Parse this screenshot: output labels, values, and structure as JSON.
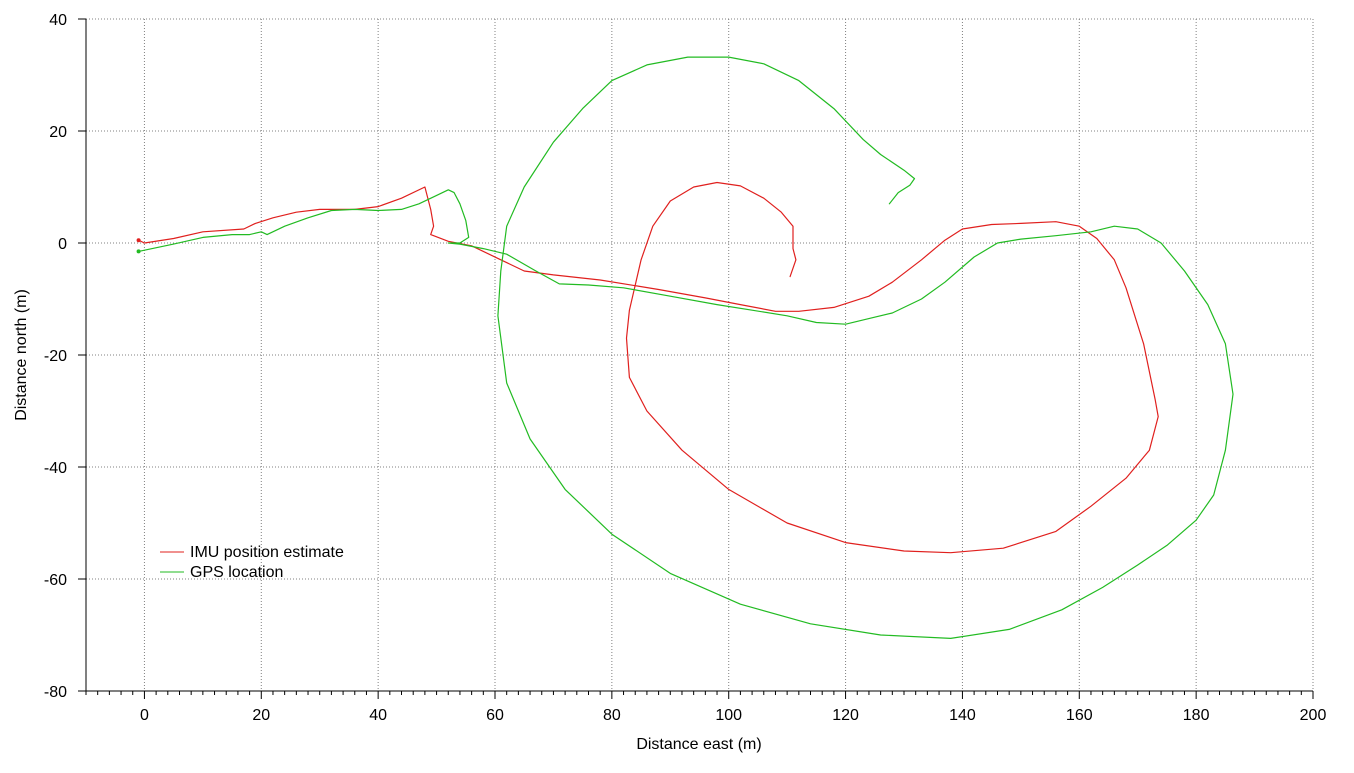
{
  "chart_data": {
    "type": "line",
    "title": "",
    "xlabel": "Distance east (m)",
    "ylabel": "Distance north (m)",
    "xlim": [
      -10,
      200
    ],
    "ylim": [
      -80,
      40
    ],
    "xticks": [
      0,
      20,
      40,
      60,
      80,
      100,
      120,
      140,
      160,
      180,
      200
    ],
    "yticks": [
      -80,
      -60,
      -40,
      -20,
      0,
      20,
      40
    ],
    "grid": true,
    "legend_position": "lower-left",
    "series": [
      {
        "name": "IMU position estimate",
        "color": "#e0201e",
        "points": [
          [
            -1,
            0.5
          ],
          [
            0,
            0
          ],
          [
            5,
            0.8
          ],
          [
            10,
            2
          ],
          [
            17,
            2.5
          ],
          [
            19,
            3.5
          ],
          [
            22,
            4.5
          ],
          [
            26,
            5.5
          ],
          [
            30,
            6
          ],
          [
            36,
            6
          ],
          [
            40,
            6.5
          ],
          [
            44,
            8
          ],
          [
            48,
            10
          ],
          [
            49,
            6
          ],
          [
            49.5,
            3
          ],
          [
            49,
            1.5
          ],
          [
            52,
            0.3
          ],
          [
            56,
            -0.5
          ],
          [
            61,
            -3
          ],
          [
            65,
            -5
          ],
          [
            70,
            -5.7
          ],
          [
            78,
            -6.6
          ],
          [
            88,
            -8.3
          ],
          [
            96,
            -9.8
          ],
          [
            102,
            -11
          ],
          [
            108,
            -12.2
          ],
          [
            112,
            -12.2
          ],
          [
            118,
            -11.5
          ],
          [
            124,
            -9.5
          ],
          [
            128,
            -7
          ],
          [
            133,
            -3
          ],
          [
            137,
            0.5
          ],
          [
            140,
            2.5
          ],
          [
            145,
            3.3
          ],
          [
            150,
            3.5
          ],
          [
            156,
            3.8
          ],
          [
            160,
            3
          ],
          [
            163,
            0.8
          ],
          [
            166,
            -3
          ],
          [
            168,
            -8
          ],
          [
            171,
            -18
          ],
          [
            173,
            -28
          ],
          [
            173.5,
            -31
          ],
          [
            172,
            -37
          ],
          [
            168,
            -42
          ],
          [
            162,
            -47
          ],
          [
            156,
            -51.5
          ],
          [
            147,
            -54.5
          ],
          [
            138,
            -55.3
          ],
          [
            130,
            -55
          ],
          [
            120,
            -53.5
          ],
          [
            110,
            -50
          ],
          [
            100,
            -44
          ],
          [
            92,
            -37
          ],
          [
            86,
            -30
          ],
          [
            83,
            -24
          ],
          [
            82.5,
            -17
          ],
          [
            83,
            -12
          ],
          [
            85,
            -3
          ],
          [
            87,
            3
          ],
          [
            90,
            7.5
          ],
          [
            94,
            10
          ],
          [
            98,
            10.8
          ],
          [
            102,
            10.2
          ],
          [
            106,
            8
          ],
          [
            109,
            5.5
          ],
          [
            111,
            3
          ],
          [
            111,
            -1
          ],
          [
            111.5,
            -3
          ],
          [
            110.5,
            -6
          ]
        ]
      },
      {
        "name": "GPS location",
        "color": "#22bb22",
        "points": [
          [
            -1,
            -1.5
          ],
          [
            5,
            -0.2
          ],
          [
            10,
            1
          ],
          [
            15,
            1.5
          ],
          [
            18,
            1.5
          ],
          [
            20,
            2
          ],
          [
            21,
            1.5
          ],
          [
            24,
            3
          ],
          [
            28,
            4.5
          ],
          [
            32,
            5.8
          ],
          [
            36,
            6
          ],
          [
            40,
            5.8
          ],
          [
            44,
            6
          ],
          [
            47,
            7
          ],
          [
            50,
            8.5
          ],
          [
            52,
            9.5
          ],
          [
            53,
            9
          ],
          [
            54,
            7
          ],
          [
            55,
            4
          ],
          [
            55.5,
            1
          ],
          [
            54,
            0
          ],
          [
            52,
            0
          ],
          [
            54,
            -0.2
          ],
          [
            58,
            -1
          ],
          [
            62,
            -2
          ],
          [
            67,
            -5
          ],
          [
            71,
            -7.3
          ],
          [
            76,
            -7.5
          ],
          [
            82,
            -8
          ],
          [
            90,
            -9.5
          ],
          [
            98,
            -11
          ],
          [
            104,
            -12
          ],
          [
            110,
            -13
          ],
          [
            115,
            -14.2
          ],
          [
            120,
            -14.5
          ],
          [
            124,
            -13.5
          ],
          [
            128,
            -12.5
          ],
          [
            133,
            -10
          ],
          [
            137,
            -7
          ],
          [
            142,
            -2.5
          ],
          [
            146,
            0
          ],
          [
            150,
            0.7
          ],
          [
            156,
            1.3
          ],
          [
            162,
            2
          ],
          [
            166,
            3
          ],
          [
            170,
            2.5
          ],
          [
            174,
            0
          ],
          [
            178,
            -5
          ],
          [
            182,
            -11
          ],
          [
            185,
            -18
          ],
          [
            186.3,
            -27
          ],
          [
            185,
            -37
          ],
          [
            183,
            -45
          ],
          [
            180,
            -49.5
          ],
          [
            175,
            -54
          ],
          [
            170,
            -57.5
          ],
          [
            164,
            -61.5
          ],
          [
            157,
            -65.5
          ],
          [
            148,
            -69
          ],
          [
            138,
            -70.6
          ],
          [
            126,
            -70
          ],
          [
            114,
            -68
          ],
          [
            102,
            -64.5
          ],
          [
            90,
            -59
          ],
          [
            80,
            -52
          ],
          [
            72,
            -44
          ],
          [
            66,
            -35
          ],
          [
            62,
            -25
          ],
          [
            60.5,
            -13
          ],
          [
            61,
            -5
          ],
          [
            62,
            3
          ],
          [
            65,
            10
          ],
          [
            70,
            18
          ],
          [
            75,
            24
          ],
          [
            80,
            29
          ],
          [
            86,
            31.8
          ],
          [
            93,
            33.2
          ],
          [
            100,
            33.2
          ],
          [
            106,
            32
          ],
          [
            112,
            29
          ],
          [
            118,
            24
          ],
          [
            123,
            18.5
          ],
          [
            126,
            15.8
          ],
          [
            130,
            13
          ],
          [
            131.8,
            11.5
          ],
          [
            131,
            10.3
          ],
          [
            129,
            9
          ],
          [
            127.5,
            7
          ]
        ]
      }
    ]
  }
}
